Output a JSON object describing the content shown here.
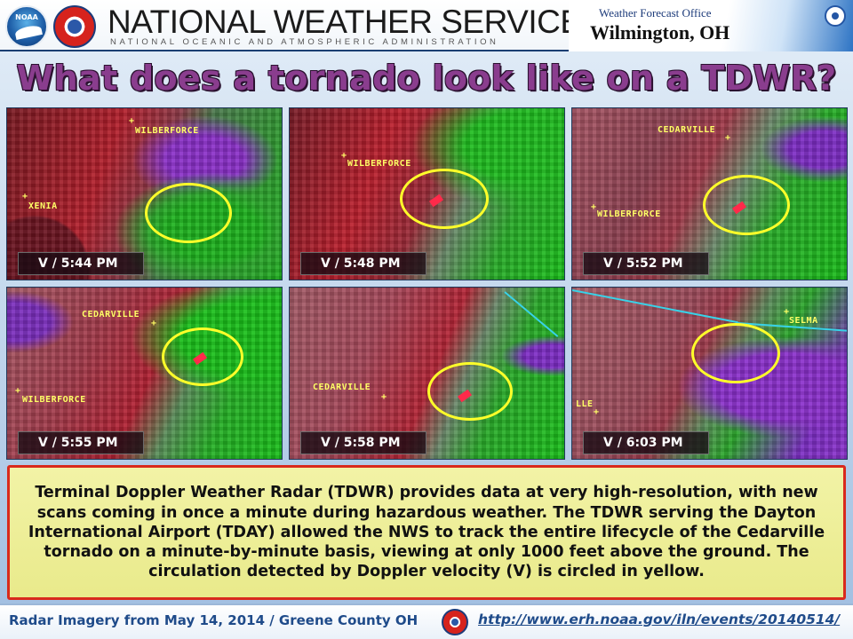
{
  "header": {
    "agency_title": "NATIONAL WEATHER SERVICE",
    "agency_subtitle": "NATIONAL OCEANIC AND ATMOSPHERIC ADMINISTRATION",
    "office_label": "Weather Forecast Office",
    "office_city": "Wilmington, OH",
    "logos": [
      "noaa-logo",
      "nws-logo",
      "doc-seal"
    ],
    "noaa_logo_text": "NOAA"
  },
  "slide_title": "What does a tornado look like on a TDWR?",
  "panels": [
    {
      "time": "V / 5:44 PM",
      "labels": [
        "WILBERFORCE",
        "XENIA"
      ]
    },
    {
      "time": "V / 5:48 PM",
      "labels": [
        "WILBERFORCE"
      ]
    },
    {
      "time": "V / 5:52 PM",
      "labels": [
        "CEDARVILLE",
        "WILBERFORCE"
      ]
    },
    {
      "time": "V / 5:55 PM",
      "labels": [
        "CEDARVILLE",
        "WILBERFORCE"
      ]
    },
    {
      "time": "V / 5:58 PM",
      "labels": [
        "CEDARVILLE"
      ]
    },
    {
      "time": "V / 6:03 PM",
      "labels": [
        "SELMA",
        "LLE"
      ]
    }
  ],
  "description": "Terminal Doppler Weather Radar (TDWR) provides data at very high-resolution, with new scans coming in once a minute during hazardous weather. The TDWR serving the Dayton International Airport (TDAY) allowed the NWS to track the entire lifecycle of the Cedarville tornado on a minute-by-minute basis, viewing at only 1000 feet above the ground. The circulation detected by Doppler velocity (V) is circled in yellow.",
  "footer": {
    "caption": "Radar Imagery from May 14, 2014 / Greene County OH",
    "link": "http://www.erh.noaa.gov/iln/events/20140514/"
  },
  "colors": {
    "title": "#8a3d8e",
    "circle": "#ffff2a",
    "description_border": "#d92a1c",
    "description_background": "#eeef98",
    "footer_text": "#1f4b8a"
  }
}
